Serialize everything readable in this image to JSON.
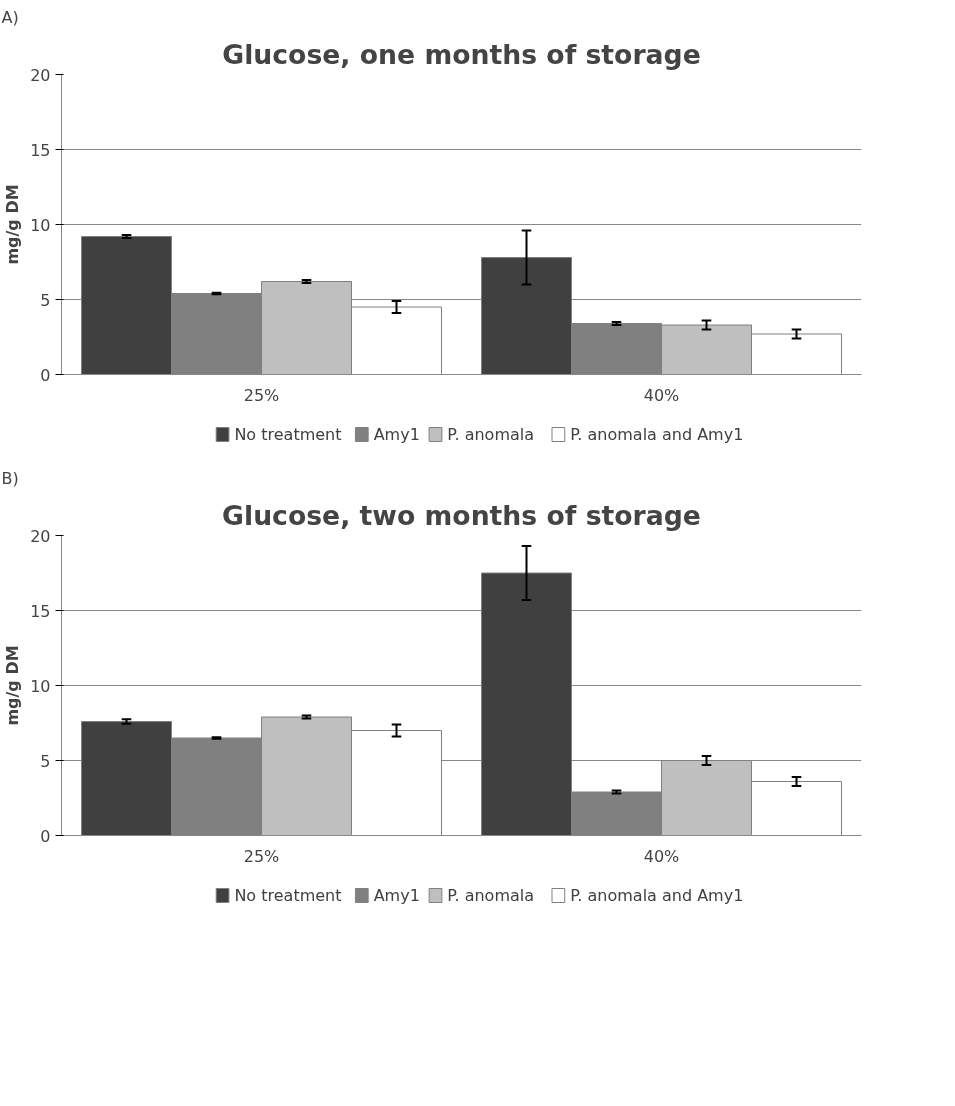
{
  "chart_data": [
    {
      "type": "bar",
      "title": "Glucose, one months of storage",
      "ylabel": "mg/g DM",
      "annotations": [
        "A)"
      ],
      "categories": [
        "25%",
        "40%"
      ],
      "ylim": [
        0,
        20
      ],
      "yticks": [
        0,
        5,
        10,
        15,
        20
      ],
      "grid": "y",
      "legend": "bottom",
      "series": [
        {
          "name": "No treatment",
          "color": "#404040",
          "values": [
            9.2,
            7.8
          ],
          "errors": [
            0.1,
            1.8
          ]
        },
        {
          "name": "Amy1",
          "color": "#808080",
          "values": [
            5.4,
            3.4
          ],
          "errors": [
            0.05,
            0.1
          ]
        },
        {
          "name": "P. anomala",
          "color": "#bfbfbf",
          "values": [
            6.2,
            3.3
          ],
          "errors": [
            0.1,
            0.3
          ]
        },
        {
          "name": "P. anomala and Amy1",
          "color": "#ffffff",
          "values": [
            4.5,
            2.7
          ],
          "errors": [
            0.4,
            0.3
          ]
        }
      ]
    },
    {
      "type": "bar",
      "title": "Glucose, two months of storage",
      "ylabel": "mg/g DM",
      "annotations": [
        "B)"
      ],
      "categories": [
        "25%",
        "40%"
      ],
      "ylim": [
        0,
        20
      ],
      "yticks": [
        0,
        5,
        10,
        15,
        20
      ],
      "grid": "y",
      "legend": "bottom",
      "series": [
        {
          "name": "No treatment",
          "color": "#404040",
          "values": [
            7.6,
            17.5
          ],
          "errors": [
            0.15,
            1.8
          ]
        },
        {
          "name": "Amy1",
          "color": "#808080",
          "values": [
            6.5,
            2.9
          ],
          "errors": [
            0.05,
            0.1
          ]
        },
        {
          "name": "P. anomala",
          "color": "#bfbfbf",
          "values": [
            7.9,
            5.0
          ],
          "errors": [
            0.1,
            0.3
          ]
        },
        {
          "name": "P. anomala and Amy1",
          "color": "#ffffff",
          "values": [
            7.0,
            3.6
          ],
          "errors": [
            0.4,
            0.3
          ]
        }
      ]
    }
  ]
}
